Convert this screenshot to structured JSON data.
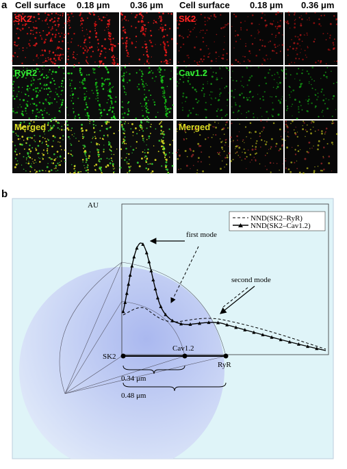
{
  "panel_a": {
    "label": "a",
    "left": {
      "column_headers": [
        "Cell surface",
        "0.18 μm",
        "0.36 μm"
      ],
      "row_labels": [
        "SK2",
        "RyR2",
        "Merged"
      ]
    },
    "right": {
      "column_headers": [
        "Cell surface",
        "0.18 μm",
        "0.36 μm"
      ],
      "row_labels": [
        "SK2",
        "Cav1.2",
        "Merged"
      ]
    }
  },
  "panel_b": {
    "label": "b",
    "y_label": "AU",
    "legend": [
      "NND(SK2–RyR)",
      "NND(SK2–Cav1.2)"
    ],
    "annotations": [
      "first mode",
      "second mode"
    ],
    "points": [
      "SK2",
      "Cav1.2",
      "RyR"
    ],
    "distances": [
      "0.34 μm",
      "0.48 μm"
    ]
  }
}
